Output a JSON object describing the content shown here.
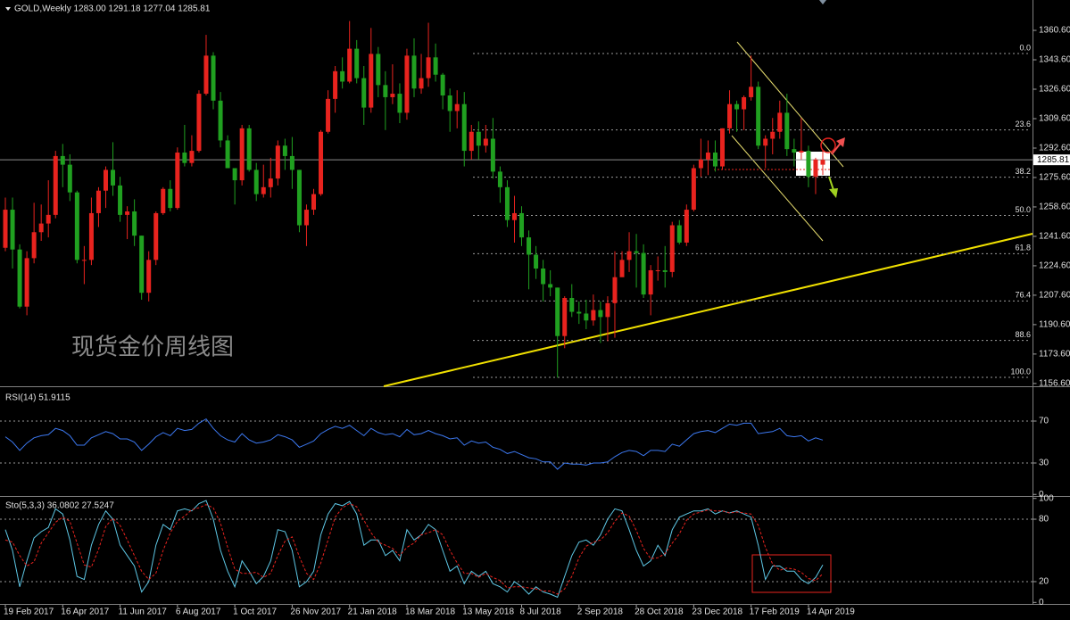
{
  "chart_data": [
    {
      "type": "candlestick",
      "title": "GOLD,Weekly 1283.00 1291.18 1277.04 1285.81",
      "annotation": "现货金价周线图",
      "categories": [
        "19 Feb 2017",
        null,
        null,
        null,
        null,
        null,
        null,
        null,
        "16 Apr 2017",
        null,
        null,
        null,
        null,
        null,
        null,
        null,
        "11 Jun 2017",
        null,
        null,
        null,
        null,
        null,
        null,
        null,
        "6 Aug 2017",
        null,
        null,
        null,
        null,
        null,
        null,
        null,
        "1 Oct 2017",
        null,
        null,
        null,
        null,
        null,
        null,
        null,
        "26 Nov 2017",
        null,
        null,
        null,
        null,
        null,
        null,
        null,
        "21 Jan 2018",
        null,
        null,
        null,
        null,
        null,
        null,
        null,
        "18 Mar 2018",
        null,
        null,
        null,
        null,
        null,
        null,
        null,
        "13 May 2018",
        null,
        null,
        null,
        null,
        null,
        null,
        null,
        "8 Jul 2018",
        null,
        null,
        null,
        null,
        null,
        null,
        null,
        "2 Sep 2018",
        null,
        null,
        null,
        null,
        null,
        null,
        null,
        "28 Oct 2018",
        null,
        null,
        null,
        null,
        null,
        null,
        null,
        "23 Dec 2018",
        null,
        null,
        null,
        null,
        null,
        null,
        null,
        "17 Feb 2019",
        null,
        null,
        null,
        null,
        null,
        null,
        null,
        "14 Apr 2019",
        null,
        null
      ],
      "open": [
        1235,
        1257,
        1234,
        1201,
        1229,
        1244,
        1249,
        1254,
        1288,
        1283,
        1267,
        1228,
        1228,
        1255,
        1268,
        1280,
        1271,
        1254,
        1256,
        1242,
        1209,
        1228,
        1255,
        1269,
        1258,
        1290,
        1284,
        1291,
        1324,
        1346,
        1320,
        1297,
        1281,
        1274,
        1304,
        1280,
        1266,
        1270,
        1275,
        1294,
        1288,
        1280,
        1248,
        1257,
        1266,
        1302,
        1321,
        1337,
        1331,
        1350,
        1333,
        1316,
        1347,
        1329,
        1322,
        1324,
        1313,
        1346,
        1327,
        1333,
        1345,
        1335,
        1323,
        1314,
        1318,
        1291,
        1302,
        1294,
        1298,
        1279,
        1270,
        1251,
        1255,
        1241,
        1231,
        1223,
        1214,
        1212,
        1184,
        1206,
        1198,
        1197,
        1193,
        1199,
        1195,
        1203,
        1218,
        1228,
        1233,
        1232,
        1208,
        1222,
        1222,
        1221,
        1248,
        1238,
        1257,
        1281,
        1286,
        1290,
        1282,
        1304,
        1318,
        1315,
        1322,
        1328,
        1294,
        1298,
        1302,
        1313,
        1292,
        1290,
        1291,
        1276,
        1283
      ],
      "high": [
        1264,
        1264,
        1237,
        1233,
        1261,
        1260,
        1274,
        1291,
        1295,
        1289,
        1268,
        1236,
        1264,
        1270,
        1282,
        1296,
        1276,
        1259,
        1263,
        1242,
        1233,
        1256,
        1270,
        1274,
        1293,
        1306,
        1300,
        1326,
        1358,
        1348,
        1325,
        1300,
        1281,
        1306,
        1306,
        1284,
        1283,
        1287,
        1297,
        1298,
        1299,
        1280,
        1260,
        1269,
        1303,
        1326,
        1340,
        1345,
        1366,
        1355,
        1340,
        1362,
        1351,
        1337,
        1341,
        1330,
        1350,
        1356,
        1347,
        1365,
        1353,
        1336,
        1327,
        1326,
        1325,
        1306,
        1308,
        1306,
        1310,
        1282,
        1274,
        1265,
        1259,
        1245,
        1236,
        1228,
        1222,
        1212,
        1207,
        1214,
        1204,
        1205,
        1208,
        1204,
        1207,
        1233,
        1233,
        1244,
        1243,
        1237,
        1225,
        1230,
        1236,
        1250,
        1251,
        1260,
        1283,
        1298,
        1297,
        1297,
        1304,
        1326,
        1320,
        1323,
        1346,
        1331,
        1300,
        1310,
        1320,
        1324,
        1298,
        1310,
        1294,
        1287,
        1291.18
      ],
      "low": [
        1233,
        1223,
        1200,
        1196,
        1226,
        1239,
        1241,
        1252,
        1270,
        1262,
        1226,
        1214,
        1225,
        1247,
        1258,
        1265,
        1250,
        1240,
        1236,
        1205,
        1204,
        1225,
        1254,
        1256,
        1257,
        1282,
        1282,
        1290,
        1323,
        1315,
        1293,
        1281,
        1260,
        1271,
        1279,
        1262,
        1264,
        1264,
        1271,
        1280,
        1269,
        1244,
        1236,
        1254,
        1265,
        1301,
        1313,
        1327,
        1330,
        1330,
        1306,
        1313,
        1322,
        1303,
        1318,
        1307,
        1309,
        1322,
        1324,
        1328,
        1331,
        1315,
        1302,
        1304,
        1282,
        1286,
        1286,
        1290,
        1275,
        1261,
        1247,
        1238,
        1236,
        1211,
        1217,
        1204,
        1207,
        1160,
        1177,
        1195,
        1191,
        1188,
        1190,
        1180,
        1181,
        1183,
        1219,
        1221,
        1212,
        1206,
        1196,
        1216,
        1212,
        1218,
        1237,
        1236,
        1256,
        1276,
        1277,
        1279,
        1280,
        1301,
        1302,
        1303,
        1320,
        1292,
        1281,
        1289,
        1298,
        1288,
        1282,
        1286,
        1270,
        1266,
        1277.04
      ],
      "close": [
        1257,
        1234,
        1201,
        1229,
        1244,
        1249,
        1254,
        1288,
        1283,
        1267,
        1228,
        1228,
        1255,
        1268,
        1280,
        1271,
        1254,
        1256,
        1242,
        1209,
        1228,
        1255,
        1269,
        1258,
        1290,
        1284,
        1291,
        1324,
        1346,
        1320,
        1297,
        1281,
        1274,
        1304,
        1280,
        1266,
        1270,
        1275,
        1294,
        1288,
        1280,
        1248,
        1257,
        1266,
        1302,
        1321,
        1337,
        1331,
        1350,
        1333,
        1316,
        1347,
        1329,
        1322,
        1324,
        1313,
        1346,
        1327,
        1333,
        1345,
        1335,
        1323,
        1314,
        1318,
        1291,
        1302,
        1294,
        1298,
        1279,
        1270,
        1251,
        1255,
        1241,
        1231,
        1223,
        1214,
        1212,
        1184,
        1206,
        1198,
        1197,
        1193,
        1199,
        1195,
        1203,
        1218,
        1228,
        1233,
        1232,
        1208,
        1222,
        1222,
        1221,
        1248,
        1238,
        1257,
        1281,
        1286,
        1290,
        1282,
        1304,
        1318,
        1315,
        1322,
        1328,
        1294,
        1298,
        1302,
        1313,
        1292,
        1290,
        1291,
        1276,
        1286,
        1285.81
      ],
      "up_color": "#e8231e",
      "down_color": "#20a020",
      "ylim": [
        1155.5,
        1376.6
      ],
      "yticks": [
        {
          "value": 1360.6,
          "label": "1360.60"
        },
        {
          "value": 1343.6,
          "label": "1343.60"
        },
        {
          "value": 1326.6,
          "label": "1326.60"
        },
        {
          "value": 1309.6,
          "label": "1309.60"
        },
        {
          "value": 1292.6,
          "label": "1292.60"
        },
        {
          "value": 1275.6,
          "label": "1275.60"
        },
        {
          "value": 1258.6,
          "label": "1258.60"
        },
        {
          "value": 1241.6,
          "label": "1241.60"
        },
        {
          "value": 1224.6,
          "label": "1224.60"
        },
        {
          "value": 1207.6,
          "label": "1207.60"
        },
        {
          "value": 1190.6,
          "label": "1190.60"
        },
        {
          "value": 1173.6,
          "label": "1173.60"
        },
        {
          "value": 1156.6,
          "label": "1156.60"
        }
      ],
      "current_price": {
        "value": 1285.81,
        "label": "1285.81"
      },
      "fibonacci_levels": [
        {
          "value": 0,
          "label": "0.0"
        },
        23.6,
        38.2,
        {
          "value": 50,
          "label": "50.0"
        },
        61.8,
        76.4,
        88.6,
        {
          "value": 100,
          "label": "100.0"
        }
      ]
    },
    {
      "type": "line",
      "title": "RSI(14) 51.9115",
      "series": [
        {
          "color": "#3c78f0",
          "values": [
            55,
            50,
            42,
            49,
            54,
            56,
            57,
            63,
            61,
            56,
            47,
            47,
            54,
            57,
            60,
            58,
            53,
            53,
            50,
            42,
            48,
            55,
            59,
            56,
            63,
            61,
            62,
            68,
            72,
            63,
            56,
            52,
            50,
            58,
            52,
            49,
            50,
            52,
            57,
            55,
            52,
            45,
            48,
            51,
            58,
            62,
            65,
            63,
            66,
            61,
            56,
            63,
            59,
            57,
            58,
            55,
            62,
            57,
            58,
            61,
            58,
            56,
            53,
            54,
            47,
            51,
            49,
            50,
            45,
            43,
            39,
            41,
            38,
            35,
            34,
            31,
            31,
            24,
            30,
            29,
            29,
            28,
            30,
            30,
            31,
            36,
            40,
            42,
            41,
            37,
            42,
            42,
            41,
            48,
            46,
            52,
            58,
            60,
            61,
            59,
            63,
            67,
            66,
            68,
            68,
            58,
            59,
            60,
            63,
            56,
            55,
            56,
            51,
            54,
            51.9115
          ]
        }
      ],
      "ylim": [
        0,
        100
      ],
      "yticks": [
        70,
        30,
        0
      ]
    },
    {
      "type": "line",
      "title": "Sto(5,3,3) 36.0802 27.5247",
      "series": [
        {
          "color": "#5ec8e6",
          "values": [
            70,
            50,
            15,
            40,
            62,
            68,
            72,
            90,
            85,
            60,
            25,
            22,
            55,
            75,
            88,
            80,
            55,
            45,
            35,
            10,
            20,
            55,
            75,
            70,
            88,
            90,
            88,
            95,
            98,
            80,
            50,
            30,
            15,
            40,
            30,
            18,
            25,
            40,
            70,
            68,
            50,
            15,
            20,
            30,
            65,
            85,
            95,
            93,
            97,
            85,
            55,
            60,
            60,
            45,
            50,
            40,
            70,
            60,
            65,
            75,
            70,
            50,
            30,
            35,
            18,
            30,
            25,
            30,
            18,
            15,
            10,
            20,
            15,
            8,
            15,
            10,
            8,
            5,
            25,
            45,
            58,
            60,
            55,
            65,
            80,
            90,
            88,
            70,
            50,
            35,
            40,
            55,
            45,
            70,
            82,
            85,
            88,
            88,
            90,
            85,
            88,
            86,
            88,
            85,
            82,
            55,
            22,
            35,
            35,
            30,
            30,
            22,
            18,
            24,
            36.0802
          ]
        },
        {
          "color": "#e8231e",
          "dash": true,
          "values": [
            60,
            58,
            45,
            35,
            39,
            57,
            67,
            77,
            82,
            78,
            57,
            36,
            34,
            51,
            73,
            81,
            74,
            60,
            45,
            30,
            22,
            28,
            50,
            67,
            78,
            83,
            89,
            91,
            94,
            91,
            76,
            53,
            32,
            28,
            28,
            29,
            24,
            28,
            45,
            59,
            63,
            44,
            28,
            22,
            38,
            60,
            82,
            91,
            95,
            92,
            79,
            67,
            58,
            55,
            52,
            45,
            53,
            57,
            65,
            67,
            70,
            65,
            50,
            38,
            28,
            28,
            24,
            28,
            24,
            21,
            14,
            15,
            15,
            14,
            13,
            11,
            11,
            8,
            13,
            25,
            43,
            54,
            58,
            60,
            67,
            78,
            86,
            83,
            69,
            52,
            42,
            43,
            47,
            57,
            66,
            79,
            85,
            87,
            89,
            88,
            88,
            86,
            87,
            86,
            85,
            74,
            53,
            37,
            31,
            33,
            32,
            29,
            23,
            21,
            27.5247
          ]
        }
      ],
      "ylim": [
        0,
        100
      ],
      "yticks": [
        100,
        80,
        20,
        0
      ]
    }
  ]
}
